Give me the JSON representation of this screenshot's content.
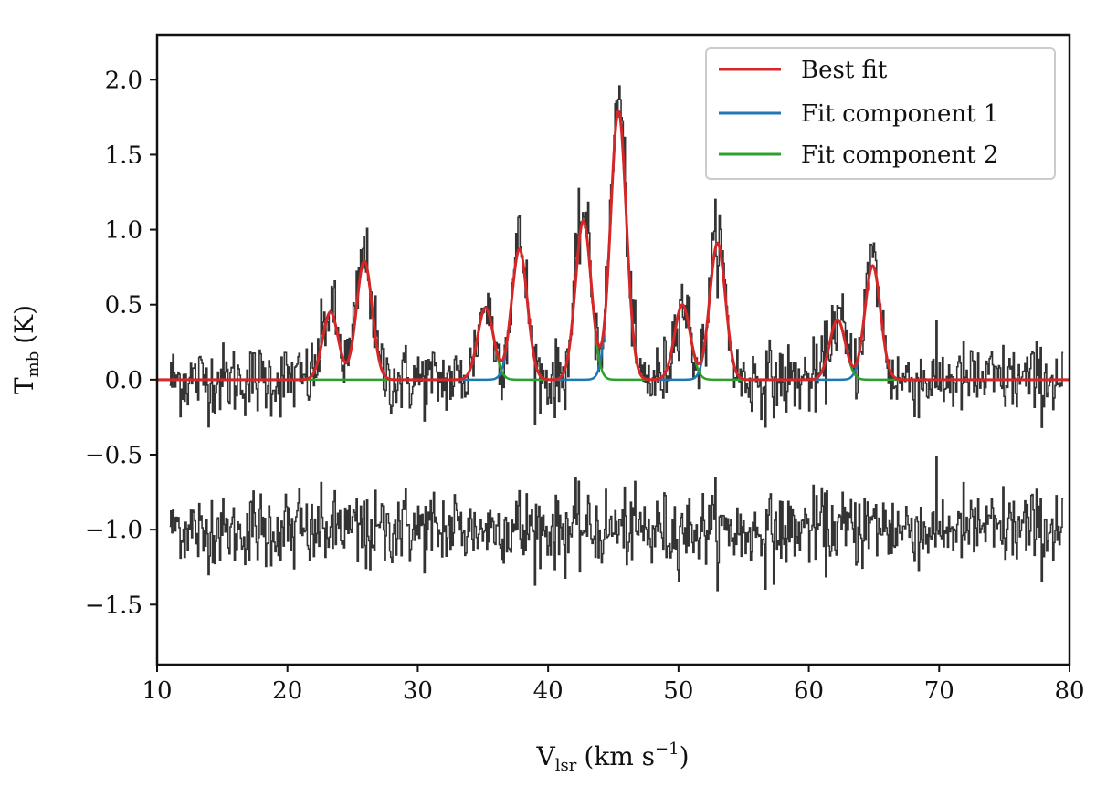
{
  "chart_data": {
    "type": "line",
    "title": "",
    "xlabel": "V_lsr (km s^-1)",
    "xlabel_main": "V",
    "xlabel_sub": "lsr",
    "xlabel_unit": "(km s",
    "xlabel_sup": "−1",
    "xlabel_close": ")",
    "ylabel": "T_mb (K)",
    "ylabel_main": "T",
    "ylabel_sub": "mb",
    "ylabel_unit": "(K)",
    "xlim": [
      10,
      80
    ],
    "ylim": [
      -1.9,
      2.3
    ],
    "xticks": [
      10,
      20,
      30,
      40,
      50,
      60,
      70,
      80
    ],
    "xtick_labels": [
      "10",
      "20",
      "30",
      "40",
      "50",
      "60",
      "70",
      "80"
    ],
    "yticks": [
      2.0,
      1.5,
      1.0,
      0.5,
      0.0,
      -0.5,
      -1.0,
      -1.5
    ],
    "ytick_labels": [
      "2.0",
      "1.5",
      "1.0",
      "0.5",
      "0.0",
      "−0.5",
      "−1.0",
      "−1.5"
    ],
    "legend": {
      "position": "top-right",
      "entries": [
        {
          "label": "Best fit",
          "color": "#d62728"
        },
        {
          "label": "Fit component 1",
          "color": "#1f77b4"
        },
        {
          "label": "Fit component 2",
          "color": "#2ca02c"
        }
      ]
    },
    "series": [
      {
        "name": "Observed spectrum",
        "style": "step",
        "color": "#333333",
        "noise_sigma": 0.12,
        "baseline": 0.0
      },
      {
        "name": "Residual",
        "style": "step",
        "color": "#333333",
        "noise_sigma": 0.12,
        "baseline": -1.0
      },
      {
        "name": "Fit component 1",
        "color": "#1f77b4",
        "sigma": 0.6,
        "peaks": [
          {
            "center": 23.3,
            "amplitude": 0.45
          },
          {
            "center": 25.9,
            "amplitude": 0.79
          },
          {
            "center": 37.8,
            "amplitude": 0.87
          },
          {
            "center": 45.4,
            "amplitude": 1.79
          },
          {
            "center": 53.0,
            "amplitude": 0.91
          },
          {
            "center": 64.9,
            "amplitude": 0.76
          }
        ]
      },
      {
        "name": "Fit component 2",
        "color": "#2ca02c",
        "sigma": 0.6,
        "peaks": [
          {
            "center": 35.2,
            "amplitude": 0.48
          },
          {
            "center": 42.7,
            "amplitude": 1.06
          },
          {
            "center": 50.3,
            "amplitude": 0.5
          },
          {
            "center": 62.2,
            "amplitude": 0.4
          }
        ]
      },
      {
        "name": "Best fit",
        "color": "#d62728",
        "definition": "sum of fit component 1 and fit component 2"
      }
    ]
  }
}
